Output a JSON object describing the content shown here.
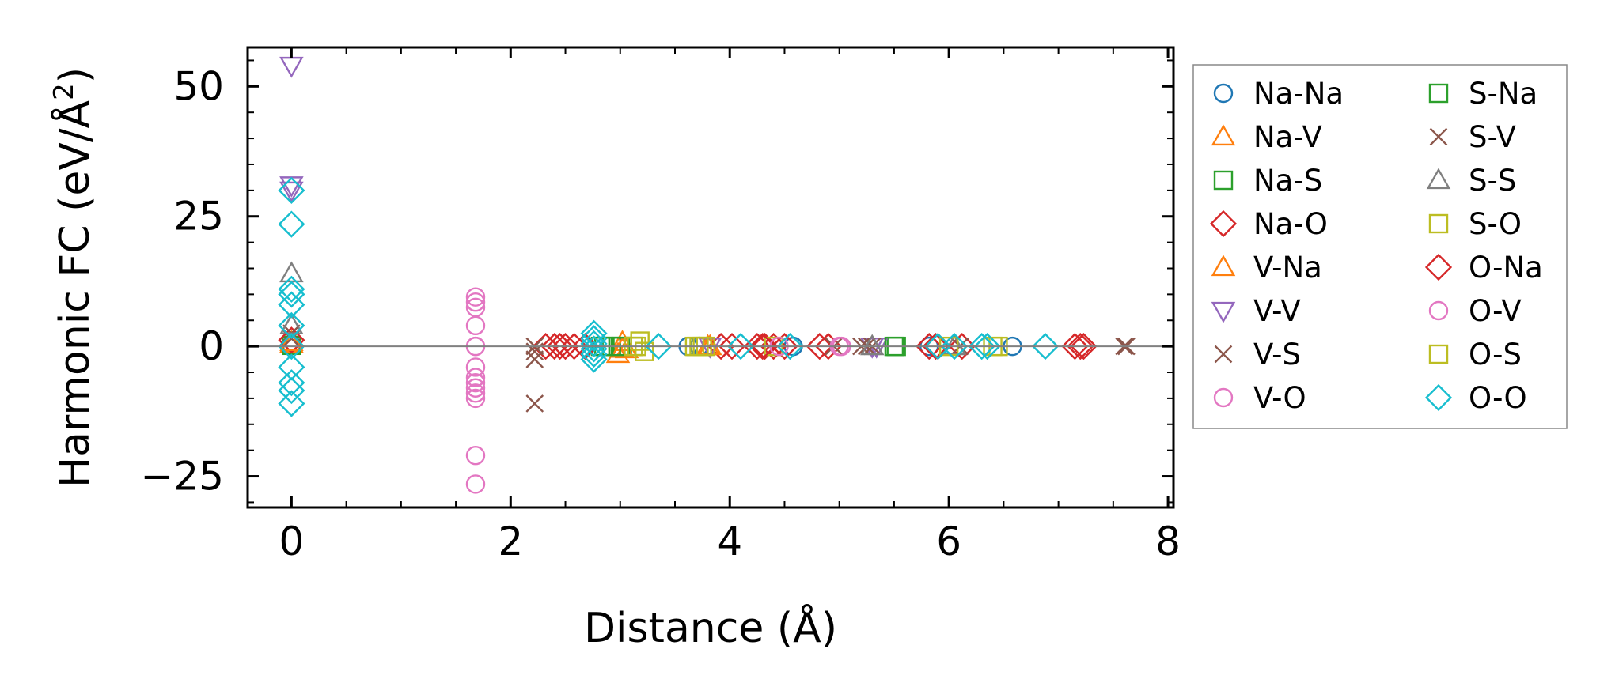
{
  "chart_data": {
    "type": "scatter",
    "xlabel": "Distance (Å)",
    "ylabel": "Harmonic FC (eV/Å",
    "ylabel_superscript": "2",
    "ylabel_suffix": ")",
    "xlim": [
      -0.4,
      8.05
    ],
    "ylim": [
      -31,
      57.5
    ],
    "xticks": [
      0,
      2,
      4,
      6,
      8
    ],
    "xtick_labels": [
      "0",
      "2",
      "4",
      "6",
      "8"
    ],
    "yticks": [
      -25,
      0,
      25,
      50
    ],
    "ytick_labels": [
      "−25",
      "0",
      "25",
      "50"
    ],
    "grid": false,
    "reference_line_y": 0,
    "legend": {
      "placement": "outside-right",
      "columns": 2
    },
    "series": [
      {
        "name": "Na-Na",
        "marker": "circle",
        "color": "#1f77b4",
        "points": [
          [
            0,
            0.3
          ],
          [
            3.62,
            0
          ],
          [
            3.72,
            0
          ],
          [
            4.58,
            0
          ],
          [
            5.82,
            0
          ],
          [
            6.58,
            0
          ]
        ]
      },
      {
        "name": "Na-V",
        "marker": "triangle-up",
        "color": "#ff7f0e",
        "points": [
          [
            0,
            0.5
          ],
          [
            2.98,
            -1.5
          ],
          [
            3.02,
            0.8
          ],
          [
            3.06,
            -0.6
          ],
          [
            3.82,
            0
          ]
        ]
      },
      {
        "name": "Na-S",
        "marker": "square",
        "color": "#2ca02c",
        "points": [
          [
            0,
            0.2
          ],
          [
            2.82,
            0
          ],
          [
            2.92,
            0
          ],
          [
            3.02,
            0
          ],
          [
            3.12,
            0
          ],
          [
            5.52,
            0
          ]
        ]
      },
      {
        "name": "Na-O",
        "marker": "diamond",
        "color": "#d62728",
        "points": [
          [
            0,
            1.2
          ],
          [
            2.32,
            0
          ],
          [
            2.4,
            0
          ],
          [
            2.5,
            0
          ],
          [
            2.58,
            0
          ],
          [
            2.68,
            0
          ],
          [
            3.92,
            0
          ],
          [
            4.02,
            0
          ],
          [
            4.25,
            0
          ],
          [
            4.32,
            0
          ],
          [
            4.4,
            0
          ],
          [
            4.5,
            0
          ],
          [
            4.82,
            0
          ],
          [
            4.9,
            0
          ],
          [
            5.82,
            0
          ],
          [
            5.88,
            0
          ],
          [
            6.12,
            0
          ],
          [
            7.15,
            0
          ],
          [
            7.23,
            0
          ]
        ]
      },
      {
        "name": "V-Na",
        "marker": "triangle-up",
        "color": "#ff7f0e",
        "points": [
          [
            0,
            0.8
          ],
          [
            3.02,
            -0.5
          ],
          [
            3.8,
            0
          ]
        ]
      },
      {
        "name": "V-V",
        "marker": "triangle-down",
        "color": "#9467bd",
        "points": [
          [
            0,
            54
          ],
          [
            0,
            31
          ],
          [
            0,
            30
          ],
          [
            3.82,
            0
          ],
          [
            5.3,
            0
          ],
          [
            5.34,
            0
          ]
        ]
      },
      {
        "name": "V-S",
        "marker": "x",
        "color": "#8c564b",
        "points": [
          [
            0,
            1.5
          ],
          [
            0,
            2.5
          ],
          [
            2.22,
            0
          ],
          [
            2.22,
            -2.5
          ],
          [
            2.22,
            -11
          ],
          [
            4.95,
            0
          ],
          [
            5.2,
            0
          ],
          [
            5.3,
            0
          ],
          [
            6.1,
            0
          ],
          [
            7.62,
            0
          ]
        ]
      },
      {
        "name": "V-O",
        "marker": "circle",
        "color": "#e377c2",
        "points": [
          [
            1.68,
            9.5
          ],
          [
            1.68,
            8.5
          ],
          [
            1.68,
            7.5
          ],
          [
            1.68,
            4
          ],
          [
            1.68,
            0
          ],
          [
            1.68,
            -4
          ],
          [
            1.68,
            -6
          ],
          [
            1.68,
            -7
          ],
          [
            1.68,
            -8
          ],
          [
            1.68,
            -9
          ],
          [
            1.68,
            -10
          ],
          [
            1.68,
            -21
          ],
          [
            1.68,
            -26.5
          ],
          [
            5.02,
            0
          ]
        ]
      },
      {
        "name": "S-Na",
        "marker": "square",
        "color": "#2ca02c",
        "points": [
          [
            2.85,
            0
          ],
          [
            3.0,
            0
          ],
          [
            5.5,
            0
          ]
        ]
      },
      {
        "name": "S-V",
        "marker": "x",
        "color": "#8c564b",
        "points": [
          [
            2.22,
            -1
          ],
          [
            5.25,
            0
          ],
          [
            7.6,
            0
          ]
        ]
      },
      {
        "name": "S-S",
        "marker": "triangle-up",
        "color": "#7f7f7f",
        "points": [
          [
            0,
            14
          ],
          [
            0,
            4
          ],
          [
            5.3,
            0
          ],
          [
            6.05,
            0
          ]
        ]
      },
      {
        "name": "S-O",
        "marker": "square",
        "color": "#bcbd22",
        "points": [
          [
            3.12,
            0
          ],
          [
            3.18,
            1
          ],
          [
            3.22,
            -1
          ],
          [
            3.68,
            0
          ],
          [
            3.72,
            0
          ],
          [
            3.78,
            0
          ],
          [
            4.4,
            0
          ],
          [
            6.0,
            0
          ],
          [
            6.45,
            0
          ]
        ]
      },
      {
        "name": "O-Na",
        "marker": "diamond",
        "color": "#d62728",
        "points": [
          [
            2.45,
            0
          ],
          [
            4.3,
            0
          ],
          [
            5.9,
            0
          ],
          [
            7.2,
            0
          ]
        ]
      },
      {
        "name": "O-V",
        "marker": "circle",
        "color": "#e377c2",
        "points": [
          [
            1.68,
            0
          ],
          [
            4.45,
            0
          ],
          [
            5.0,
            0
          ]
        ]
      },
      {
        "name": "O-S",
        "marker": "square",
        "color": "#bcbd22",
        "points": [
          [
            3.15,
            0
          ],
          [
            3.75,
            0
          ],
          [
            6.4,
            0
          ]
        ]
      },
      {
        "name": "O-O",
        "marker": "diamond",
        "color": "#17becf",
        "points": [
          [
            0,
            30
          ],
          [
            0,
            23.5
          ],
          [
            0,
            11
          ],
          [
            0,
            10
          ],
          [
            0,
            8
          ],
          [
            0,
            4
          ],
          [
            0,
            0
          ],
          [
            0,
            -4
          ],
          [
            0,
            -7
          ],
          [
            0,
            -8.5
          ],
          [
            0,
            -11
          ],
          [
            2.76,
            2.5
          ],
          [
            2.76,
            1.5
          ],
          [
            2.76,
            0.5
          ],
          [
            2.76,
            -0.5
          ],
          [
            2.76,
            -1.5
          ],
          [
            2.76,
            -2.5
          ],
          [
            3.35,
            0
          ],
          [
            4.1,
            0
          ],
          [
            4.55,
            0
          ],
          [
            5.9,
            0
          ],
          [
            6.05,
            0
          ],
          [
            6.3,
            0
          ],
          [
            6.35,
            0
          ],
          [
            6.88,
            0
          ]
        ]
      }
    ]
  }
}
